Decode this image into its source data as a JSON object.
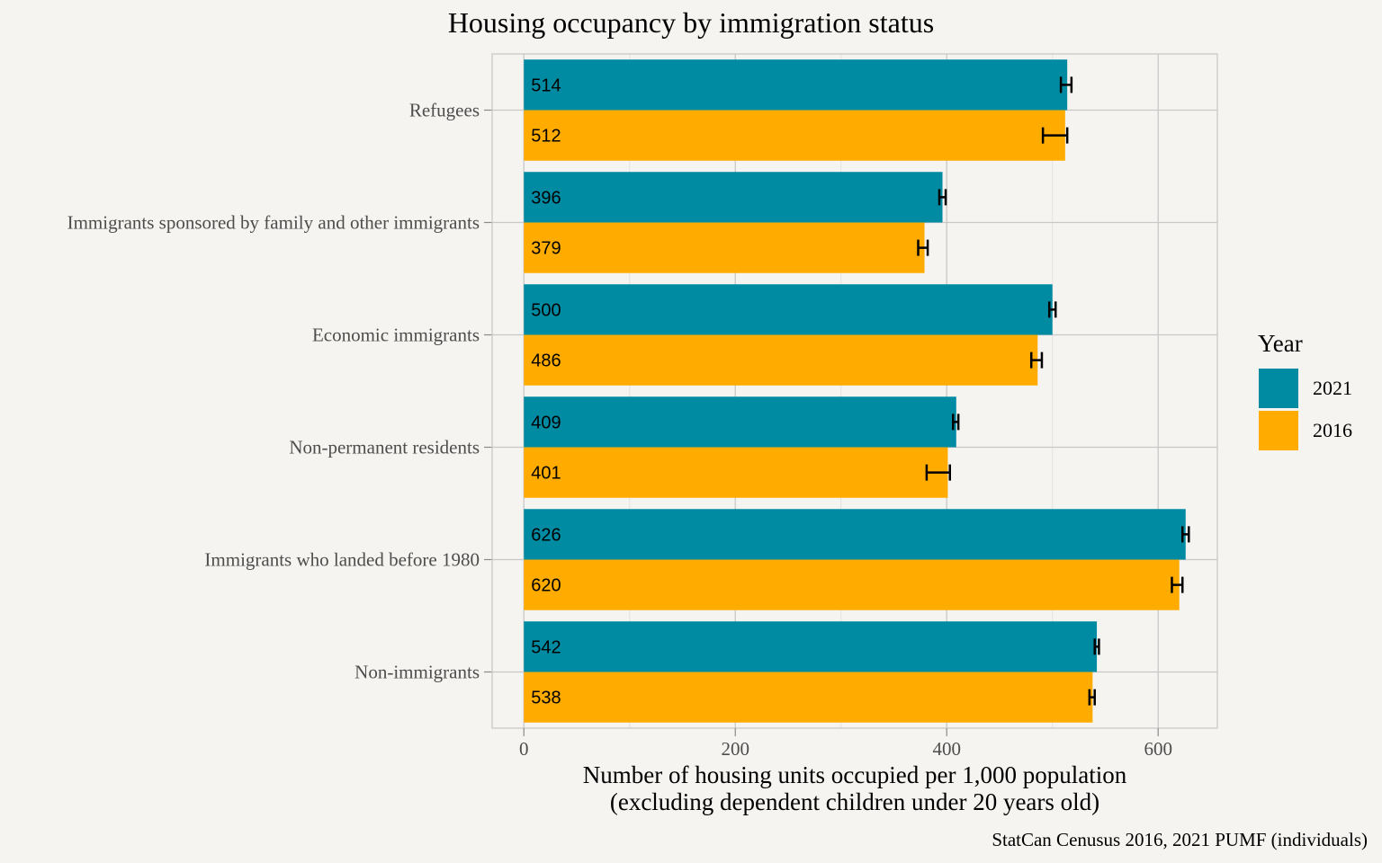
{
  "chart_data": {
    "type": "bar",
    "orientation": "horizontal",
    "title": "Housing occupancy by immigration status",
    "xlabel_line1": "Number of housing units occupied per 1,000 population",
    "xlabel_line2": "(excluding dependent children under 20 years old)",
    "ylabel": "",
    "caption": "StatCan Cenusus 2016, 2021 PUMF (individuals)",
    "categories": [
      "Refugees",
      "Immigrants sponsored by family and other immigrants",
      "Economic immigrants",
      "Non-permanent residents",
      "Immigrants who landed before 1980",
      "Non-immigrants"
    ],
    "series": [
      {
        "name": "2021",
        "color": "#008ba3",
        "values": [
          514,
          396,
          500,
          409,
          626,
          542
        ],
        "ci_low": [
          508,
          393,
          497,
          406,
          623,
          540
        ],
        "ci_high": [
          518,
          399,
          503,
          411,
          629,
          544
        ]
      },
      {
        "name": "2016",
        "color": "#ffab00",
        "values": [
          512,
          379,
          486,
          401,
          620,
          538
        ],
        "ci_low": [
          491,
          373,
          480,
          381,
          613,
          535
        ],
        "ci_high": [
          514,
          382,
          490,
          403,
          623,
          540
        ]
      }
    ],
    "xlim": [
      -30,
      656
    ],
    "xticks": [
      0,
      200,
      400,
      600
    ],
    "xtick_labels": [
      "0",
      "200",
      "400",
      "600"
    ],
    "grid": true,
    "legend_title": "Year",
    "legend_position": "right"
  }
}
